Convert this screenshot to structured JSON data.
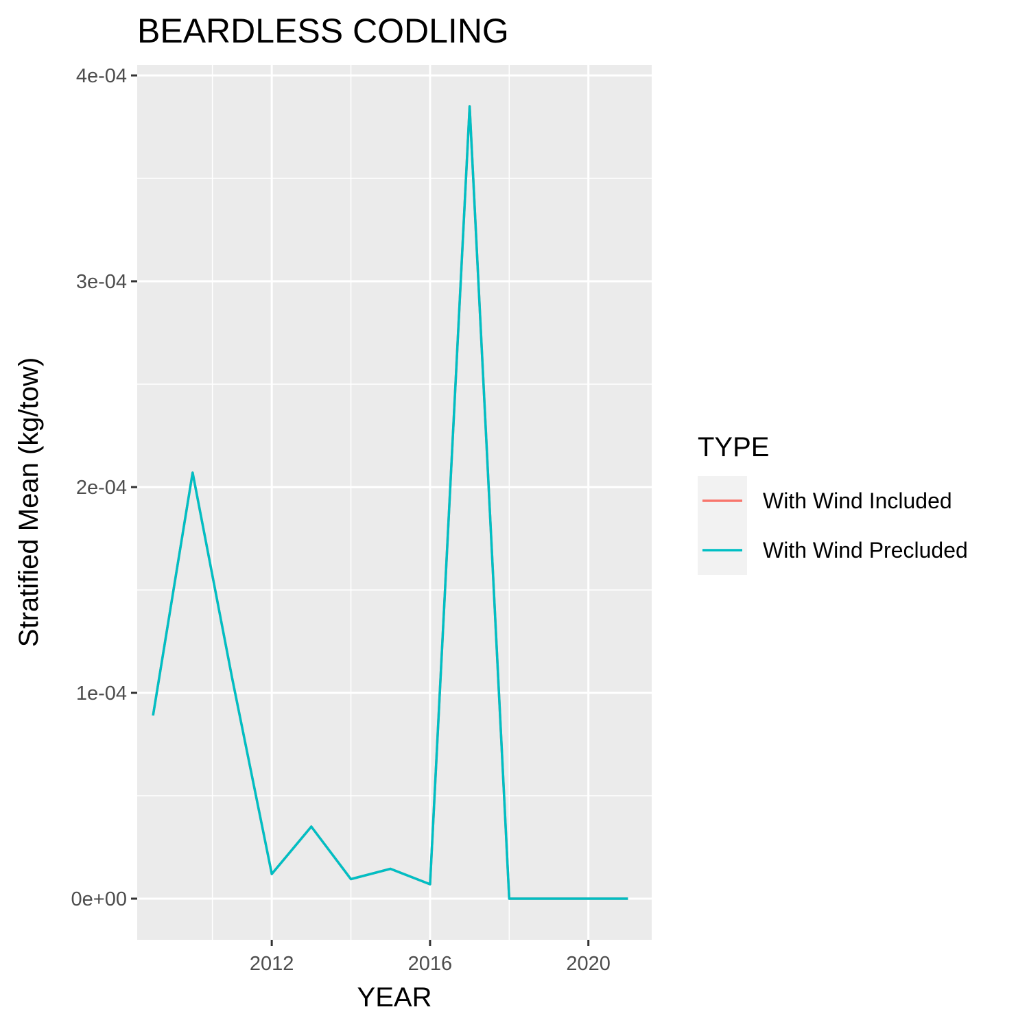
{
  "chart_data": {
    "type": "line",
    "title": "BEARDLESS CODLING",
    "xlabel": "YEAR",
    "ylabel": "Stratified Mean (kg/tow)",
    "x": [
      2009,
      2010,
      2011,
      2012,
      2013,
      2014,
      2015,
      2016,
      2017,
      2018,
      2019,
      2020,
      2021
    ],
    "xlim": [
      2008.6,
      2021.6
    ],
    "ylim": [
      -2e-05,
      0.000405
    ],
    "x_ticks": [
      2012,
      2016,
      2020
    ],
    "x_tick_labels": [
      "2012",
      "2016",
      "2020"
    ],
    "y_ticks": [
      0,
      0.0001,
      0.0002,
      0.0003,
      0.0004
    ],
    "y_tick_labels": [
      "0e+00",
      "1e-04",
      "2e-04",
      "3e-04",
      "4e-04"
    ],
    "grid": true,
    "legend": {
      "title": "TYPE",
      "position": "right",
      "entries": [
        "With Wind Included",
        "With Wind Precluded"
      ]
    },
    "series": [
      {
        "name": "With Wind Included",
        "color": "#F8766D",
        "values": [
          8.9e-05,
          0.000207,
          0.000107,
          1.2e-05,
          3.5e-05,
          9.5e-06,
          1.45e-05,
          7e-06,
          0.000385,
          0,
          0,
          0,
          0
        ]
      },
      {
        "name": "With Wind Precluded",
        "color": "#00BFC4",
        "values": [
          8.9e-05,
          0.000207,
          0.000107,
          1.2e-05,
          3.5e-05,
          9.5e-06,
          1.45e-05,
          7e-06,
          0.000385,
          0,
          0,
          0,
          0
        ]
      }
    ]
  }
}
